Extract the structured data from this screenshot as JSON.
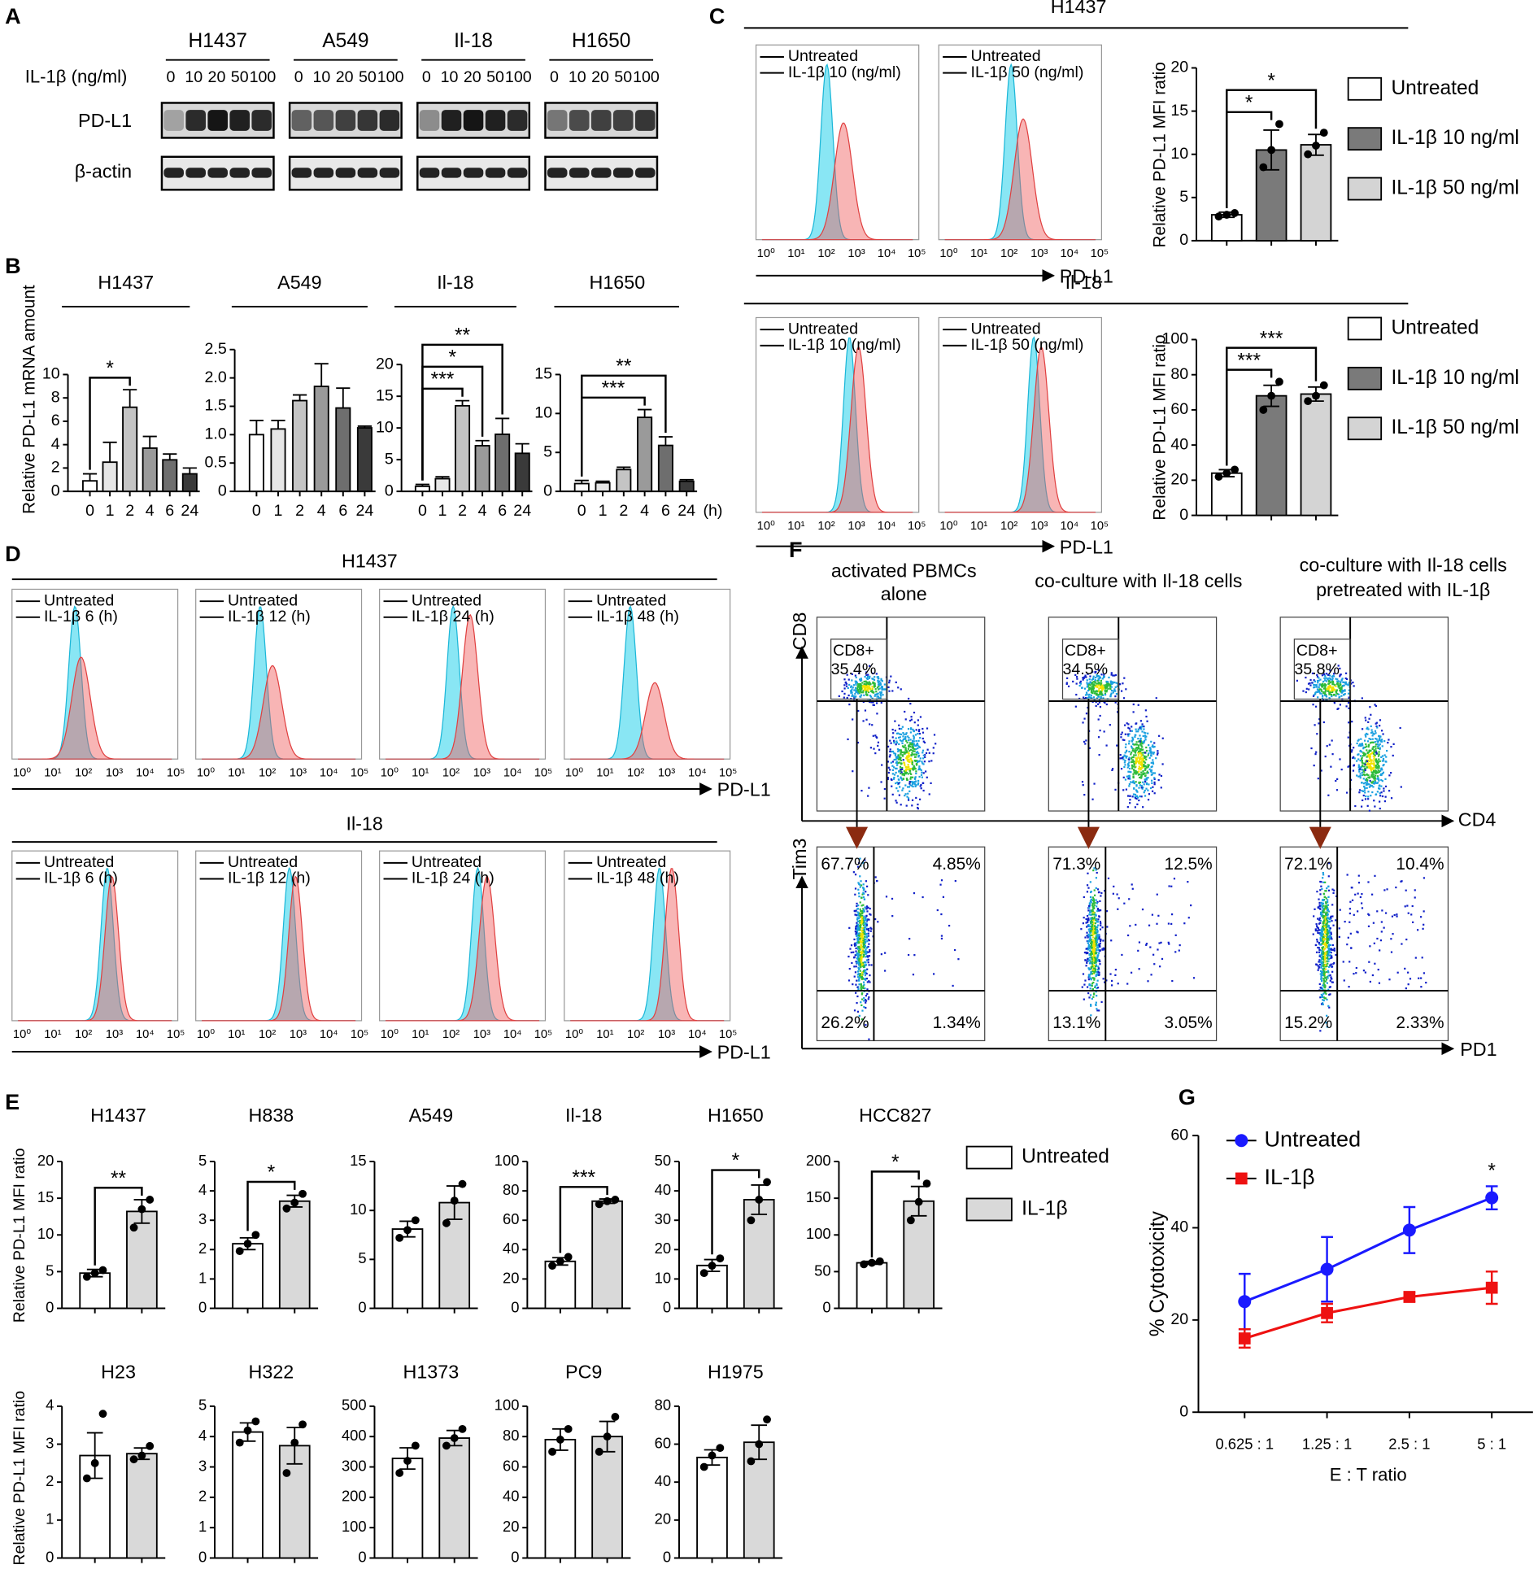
{
  "panel_labels": [
    "A",
    "B",
    "C",
    "D",
    "E",
    "F",
    "G"
  ],
  "blot": {
    "cell_lines": [
      "H1437",
      "A549",
      "Il-18",
      "H1650"
    ],
    "dose_label": "IL-1β (ng/ml)",
    "doses": [
      "0",
      "10",
      "20",
      "50",
      "100"
    ],
    "rows": [
      "PD-L1",
      "β-actin"
    ]
  },
  "hist_ticks": [
    "10⁰",
    "10¹",
    "10²",
    "10³",
    "10⁴",
    "10⁵"
  ],
  "flow_hist": [
    {
      "title": "H1437",
      "panels": [
        [
          "Untreated",
          "IL-1β 10 (ng/ml)"
        ],
        [
          "Untreated",
          "IL-1β 50 (ng/ml)"
        ]
      ],
      "axis": "PD-L1"
    },
    {
      "title": "Il-18",
      "panels": [
        [
          "Untreated",
          "IL-1β 10 (ng/ml)"
        ],
        [
          "Untreated",
          "IL-1β 50 (ng/ml)"
        ]
      ],
      "axis": "PD-L1"
    },
    {
      "title": "H1437",
      "panels": [
        [
          "Untreated",
          "IL-1β 6 (h)"
        ],
        [
          "Untreated",
          "IL-1β 12 (h)"
        ],
        [
          "Untreated",
          "IL-1β 24 (h)"
        ],
        [
          "Untreated",
          "IL-1β 48 (h)"
        ]
      ],
      "axis": "PD-L1"
    },
    {
      "title": "Il-18",
      "panels": [
        [
          "Untreated",
          "IL-1β 6 (h)"
        ],
        [
          "Untreated",
          "IL-1β 12 (h)"
        ],
        [
          "Untreated",
          "IL-1β 24 (h)"
        ],
        [
          "Untreated",
          "IL-1β 48 (h)"
        ]
      ],
      "axis": "PD-L1"
    }
  ],
  "flow_dot": {
    "titles": [
      [
        "activated PBMCs",
        "alone"
      ],
      [
        "co-culture with Il-18 cells"
      ],
      [
        "co-culture with Il-18 cells",
        "pretreated with IL-1β"
      ]
    ],
    "row1": {
      "y_axis": "CD8",
      "x_axis": "CD4",
      "gate": "CD8+",
      "percents": [
        "35.4%",
        "34.5%",
        "35.8%"
      ]
    },
    "row2": {
      "y_axis": "Tim3",
      "x_axis": "PD1",
      "quadrants": [
        [
          "67.7%",
          "4.85%",
          "26.2%",
          "1.34%"
        ],
        [
          "71.3%",
          "12.5%",
          "13.1%",
          "3.05%"
        ],
        [
          "72.1%",
          "10.4%",
          "15.2%",
          "2.33%"
        ]
      ]
    }
  },
  "chart_data": [
    {
      "type": "bar",
      "title": "H1437",
      "ylabel": "Relative PD-L1 mRNA amount",
      "categories": [
        "0",
        "1",
        "2",
        "4",
        "6",
        "24"
      ],
      "values": [
        0.9,
        2.5,
        7.2,
        3.7,
        2.7,
        1.5
      ],
      "errors": [
        0.6,
        1.7,
        1.5,
        1.0,
        0.5,
        0.5
      ],
      "colors": [
        "#ffffff",
        "#e6e6e6",
        "#c4c4c4",
        "#9a9a9a",
        "#6e6e6e",
        "#3a3a3a"
      ],
      "ylim": [
        0,
        10
      ],
      "yticks": [
        0,
        2,
        4,
        6,
        8,
        10
      ],
      "sig": [
        {
          "from": 0,
          "to": 2,
          "label": "*"
        }
      ]
    },
    {
      "type": "bar",
      "title": "A549",
      "categories": [
        "0",
        "1",
        "2",
        "4",
        "6",
        "24"
      ],
      "values": [
        1.0,
        1.1,
        1.6,
        1.85,
        1.47,
        1.12
      ],
      "errors": [
        0.25,
        0.15,
        0.1,
        0.4,
        0.35,
        0.03
      ],
      "colors": [
        "#ffffff",
        "#e6e6e6",
        "#c4c4c4",
        "#9a9a9a",
        "#6e6e6e",
        "#3a3a3a"
      ],
      "ylim": [
        0,
        2.5
      ],
      "yticks": [
        0,
        0.5,
        {
          "value": 1,
          "label": "1.0"
        },
        1.5,
        {
          "value": 2,
          "label": "2.0"
        },
        2.5
      ]
    },
    {
      "type": "bar",
      "title": "Il-18",
      "categories": [
        "0",
        "1",
        "2",
        "4",
        "6",
        "24"
      ],
      "values": [
        0.8,
        2.0,
        13.5,
        7.2,
        9.0,
        6.0
      ],
      "errors": [
        0.3,
        0.3,
        0.8,
        0.8,
        2.5,
        1.5
      ],
      "colors": [
        "#ffffff",
        "#e6e6e6",
        "#c4c4c4",
        "#9a9a9a",
        "#6e6e6e",
        "#3a3a3a"
      ],
      "ylim": [
        0,
        20
      ],
      "yticks": [
        0,
        5,
        10,
        15,
        20
      ],
      "sig": [
        {
          "from": 0,
          "to": 2,
          "label": "***"
        },
        {
          "from": 0,
          "to": 3,
          "label": "*"
        },
        {
          "from": 0,
          "to": 4,
          "label": "**"
        }
      ]
    },
    {
      "type": "bar",
      "title": "H1650",
      "xunit": "(h)",
      "categories": [
        "0",
        "1",
        "2",
        "4",
        "6",
        "24"
      ],
      "values": [
        1.0,
        1.1,
        2.8,
        9.5,
        5.9,
        1.3
      ],
      "errors": [
        0.4,
        0.2,
        0.3,
        1.0,
        1.1,
        0.2
      ],
      "colors": [
        "#ffffff",
        "#e6e6e6",
        "#c4c4c4",
        "#9a9a9a",
        "#6e6e6e",
        "#3a3a3a"
      ],
      "ylim": [
        0,
        15
      ],
      "yticks": [
        0,
        5,
        10,
        15
      ],
      "sig": [
        {
          "from": 0,
          "to": 3,
          "label": "***"
        },
        {
          "from": 0,
          "to": 4,
          "label": "**"
        }
      ]
    },
    {
      "type": "bar",
      "ylabel": "Relative PD-L1 MFI ratio",
      "legend": [
        "Untreated",
        "IL-1β 10 ng/ml",
        "IL-1β 50 ng/ml"
      ],
      "values": [
        3.0,
        10.5,
        11.1
      ],
      "errors": [
        0.3,
        2.3,
        1.2
      ],
      "points": [
        [
          2.8,
          3.0,
          3.2
        ],
        [
          8.5,
          10.5,
          13.5
        ],
        [
          10,
          11,
          12.5
        ]
      ],
      "colors": [
        "#ffffff",
        "#7a7a7a",
        "#d4d4d4"
      ],
      "ylim": [
        0,
        20
      ],
      "yticks": [
        0,
        5,
        10,
        15,
        20
      ],
      "sig": [
        {
          "from": 0,
          "to": 1,
          "label": "*"
        },
        {
          "from": 0,
          "to": 2,
          "label": "*"
        }
      ]
    },
    {
      "type": "bar",
      "ylabel": "Relative PD-L1 MFI ratio",
      "legend": [
        "Untreated",
        "IL-1β 10 ng/ml",
        "IL-1β 50 ng/ml"
      ],
      "values": [
        24,
        68,
        69
      ],
      "errors": [
        2,
        6,
        4
      ],
      "points": [
        [
          22,
          24,
          26
        ],
        [
          60,
          68,
          76
        ],
        [
          65,
          68,
          74
        ]
      ],
      "colors": [
        "#ffffff",
        "#7a7a7a",
        "#d4d4d4"
      ],
      "ylim": [
        0,
        100
      ],
      "yticks": [
        0,
        20,
        40,
        60,
        80,
        100
      ],
      "sig": [
        {
          "from": 0,
          "to": 1,
          "label": "***"
        },
        {
          "from": 0,
          "to": 2,
          "label": "***"
        }
      ]
    },
    {
      "type": "bar",
      "title": "H1437",
      "ylabel": "Relative PD-L1 MFI ratio",
      "values": [
        4.8,
        13.2
      ],
      "errors": [
        0.5,
        1.6
      ],
      "points": [
        [
          4.3,
          4.8,
          5.2
        ],
        [
          11,
          13.5,
          14.8
        ]
      ],
      "colors": [
        "#ffffff",
        "#d9d9d9"
      ],
      "ylim": [
        0,
        20
      ],
      "yticks": [
        0,
        5,
        10,
        15,
        20
      ],
      "sig": [
        {
          "from": 0,
          "to": 1,
          "label": "**"
        }
      ]
    },
    {
      "type": "bar",
      "title": "H838",
      "values": [
        2.2,
        3.65
      ],
      "errors": [
        0.2,
        0.2
      ],
      "points": [
        [
          1.95,
          2.2,
          2.5
        ],
        [
          3.4,
          3.6,
          3.9
        ]
      ],
      "colors": [
        "#ffffff",
        "#d9d9d9"
      ],
      "ylim": [
        0,
        5
      ],
      "yticks": [
        0,
        1,
        2,
        3,
        4,
        5
      ],
      "sig": [
        {
          "from": 0,
          "to": 1,
          "label": "*"
        }
      ]
    },
    {
      "type": "bar",
      "title": "A549",
      "values": [
        8.1,
        10.8
      ],
      "errors": [
        0.8,
        1.7
      ],
      "points": [
        [
          7.2,
          8,
          9
        ],
        [
          8.7,
          11,
          12.7
        ]
      ],
      "colors": [
        "#ffffff",
        "#d9d9d9"
      ],
      "ylim": [
        0,
        15
      ],
      "yticks": [
        0,
        5,
        10,
        15
      ]
    },
    {
      "type": "bar",
      "title": "Il-18",
      "values": [
        32,
        73
      ],
      "errors": [
        2.5,
        1.5
      ],
      "points": [
        [
          29,
          32,
          35
        ],
        [
          71,
          73,
          74
        ]
      ],
      "colors": [
        "#ffffff",
        "#d9d9d9"
      ],
      "ylim": [
        0,
        100
      ],
      "yticks": [
        0,
        20,
        40,
        60,
        80,
        100
      ],
      "sig": [
        {
          "from": 0,
          "to": 1,
          "label": "***"
        }
      ]
    },
    {
      "type": "bar",
      "title": "H1650",
      "values": [
        14.6,
        37
      ],
      "errors": [
        2,
        5
      ],
      "points": [
        [
          12,
          14.5,
          17
        ],
        [
          30,
          37,
          43
        ]
      ],
      "colors": [
        "#ffffff",
        "#d9d9d9"
      ],
      "ylim": [
        0,
        50
      ],
      "yticks": [
        0,
        10,
        20,
        30,
        40,
        50
      ],
      "sig": [
        {
          "from": 0,
          "to": 1,
          "label": "*"
        }
      ]
    },
    {
      "type": "bar",
      "title": "HCC827",
      "legend": [
        "Untreated",
        "IL-1β"
      ],
      "values": [
        62,
        146
      ],
      "errors": [
        2,
        20
      ],
      "points": [
        [
          60,
          62,
          64
        ],
        [
          120,
          145,
          170
        ]
      ],
      "colors": [
        "#ffffff",
        "#d9d9d9"
      ],
      "ylim": [
        0,
        200
      ],
      "yticks": [
        0,
        50,
        100,
        150,
        200
      ],
      "sig": [
        {
          "from": 0,
          "to": 1,
          "label": "*"
        }
      ]
    },
    {
      "type": "bar",
      "title": "H23",
      "ylabel": "Relative PD-L1 MFI ratio",
      "values": [
        2.7,
        2.75
      ],
      "errors": [
        0.6,
        0.15
      ],
      "points": [
        [
          2.1,
          2.5,
          3.8
        ],
        [
          2.6,
          2.7,
          2.95
        ]
      ],
      "colors": [
        "#ffffff",
        "#d9d9d9"
      ],
      "ylim": [
        0,
        4
      ],
      "yticks": [
        0,
        1,
        2,
        3,
        4
      ]
    },
    {
      "type": "bar",
      "title": "H322",
      "values": [
        4.15,
        3.7
      ],
      "errors": [
        0.3,
        0.6
      ],
      "points": [
        [
          3.8,
          4.2,
          4.5
        ],
        [
          2.8,
          3.8,
          4.4
        ]
      ],
      "colors": [
        "#ffffff",
        "#d9d9d9"
      ],
      "ylim": [
        0,
        5
      ],
      "yticks": [
        0,
        1,
        2,
        3,
        4,
        5
      ]
    },
    {
      "type": "bar",
      "title": "H1373",
      "values": [
        328,
        395
      ],
      "errors": [
        35,
        25
      ],
      "points": [
        [
          280,
          320,
          370
        ],
        [
          370,
          395,
          425
        ]
      ],
      "colors": [
        "#ffffff",
        "#d9d9d9"
      ],
      "ylim": [
        0,
        500
      ],
      "yticks": [
        0,
        100,
        200,
        300,
        400,
        500
      ]
    },
    {
      "type": "bar",
      "title": "PC9",
      "values": [
        78,
        80
      ],
      "errors": [
        7,
        10
      ],
      "points": [
        [
          70,
          78,
          85
        ],
        [
          70,
          80,
          93
        ]
      ],
      "colors": [
        "#ffffff",
        "#d9d9d9"
      ],
      "ylim": [
        0,
        100
      ],
      "yticks": [
        0,
        20,
        40,
        60,
        80,
        100
      ]
    },
    {
      "type": "bar",
      "title": "H1975",
      "values": [
        53,
        61
      ],
      "errors": [
        4,
        9
      ],
      "points": [
        [
          48,
          54,
          58
        ],
        [
          51,
          60,
          73
        ]
      ],
      "colors": [
        "#ffffff",
        "#d9d9d9"
      ],
      "ylim": [
        0,
        80
      ],
      "yticks": [
        0,
        20,
        40,
        60,
        80
      ]
    },
    {
      "type": "line",
      "xlabel": "E : T ratio",
      "ylabel": "% Cytotoxicity",
      "categories": [
        "0.625 : 1",
        "1.25 : 1",
        "2.5 : 1",
        "5 : 1"
      ],
      "series": [
        {
          "name": "Untreated",
          "color": "#1a1aff",
          "marker": "circle",
          "values": [
            24,
            31,
            39.5,
            46.5
          ],
          "errors": [
            6,
            7,
            5,
            2.5
          ]
        },
        {
          "name": "IL-1β",
          "color": "#ee1111",
          "marker": "square",
          "values": [
            16,
            21.5,
            25,
            27
          ],
          "errors": [
            2,
            2,
            1,
            3.5
          ]
        }
      ],
      "ylim": [
        0,
        60
      ],
      "yticks": [
        0,
        20,
        40,
        60
      ],
      "sig": [
        {
          "index": 3,
          "label": "*"
        }
      ]
    }
  ]
}
